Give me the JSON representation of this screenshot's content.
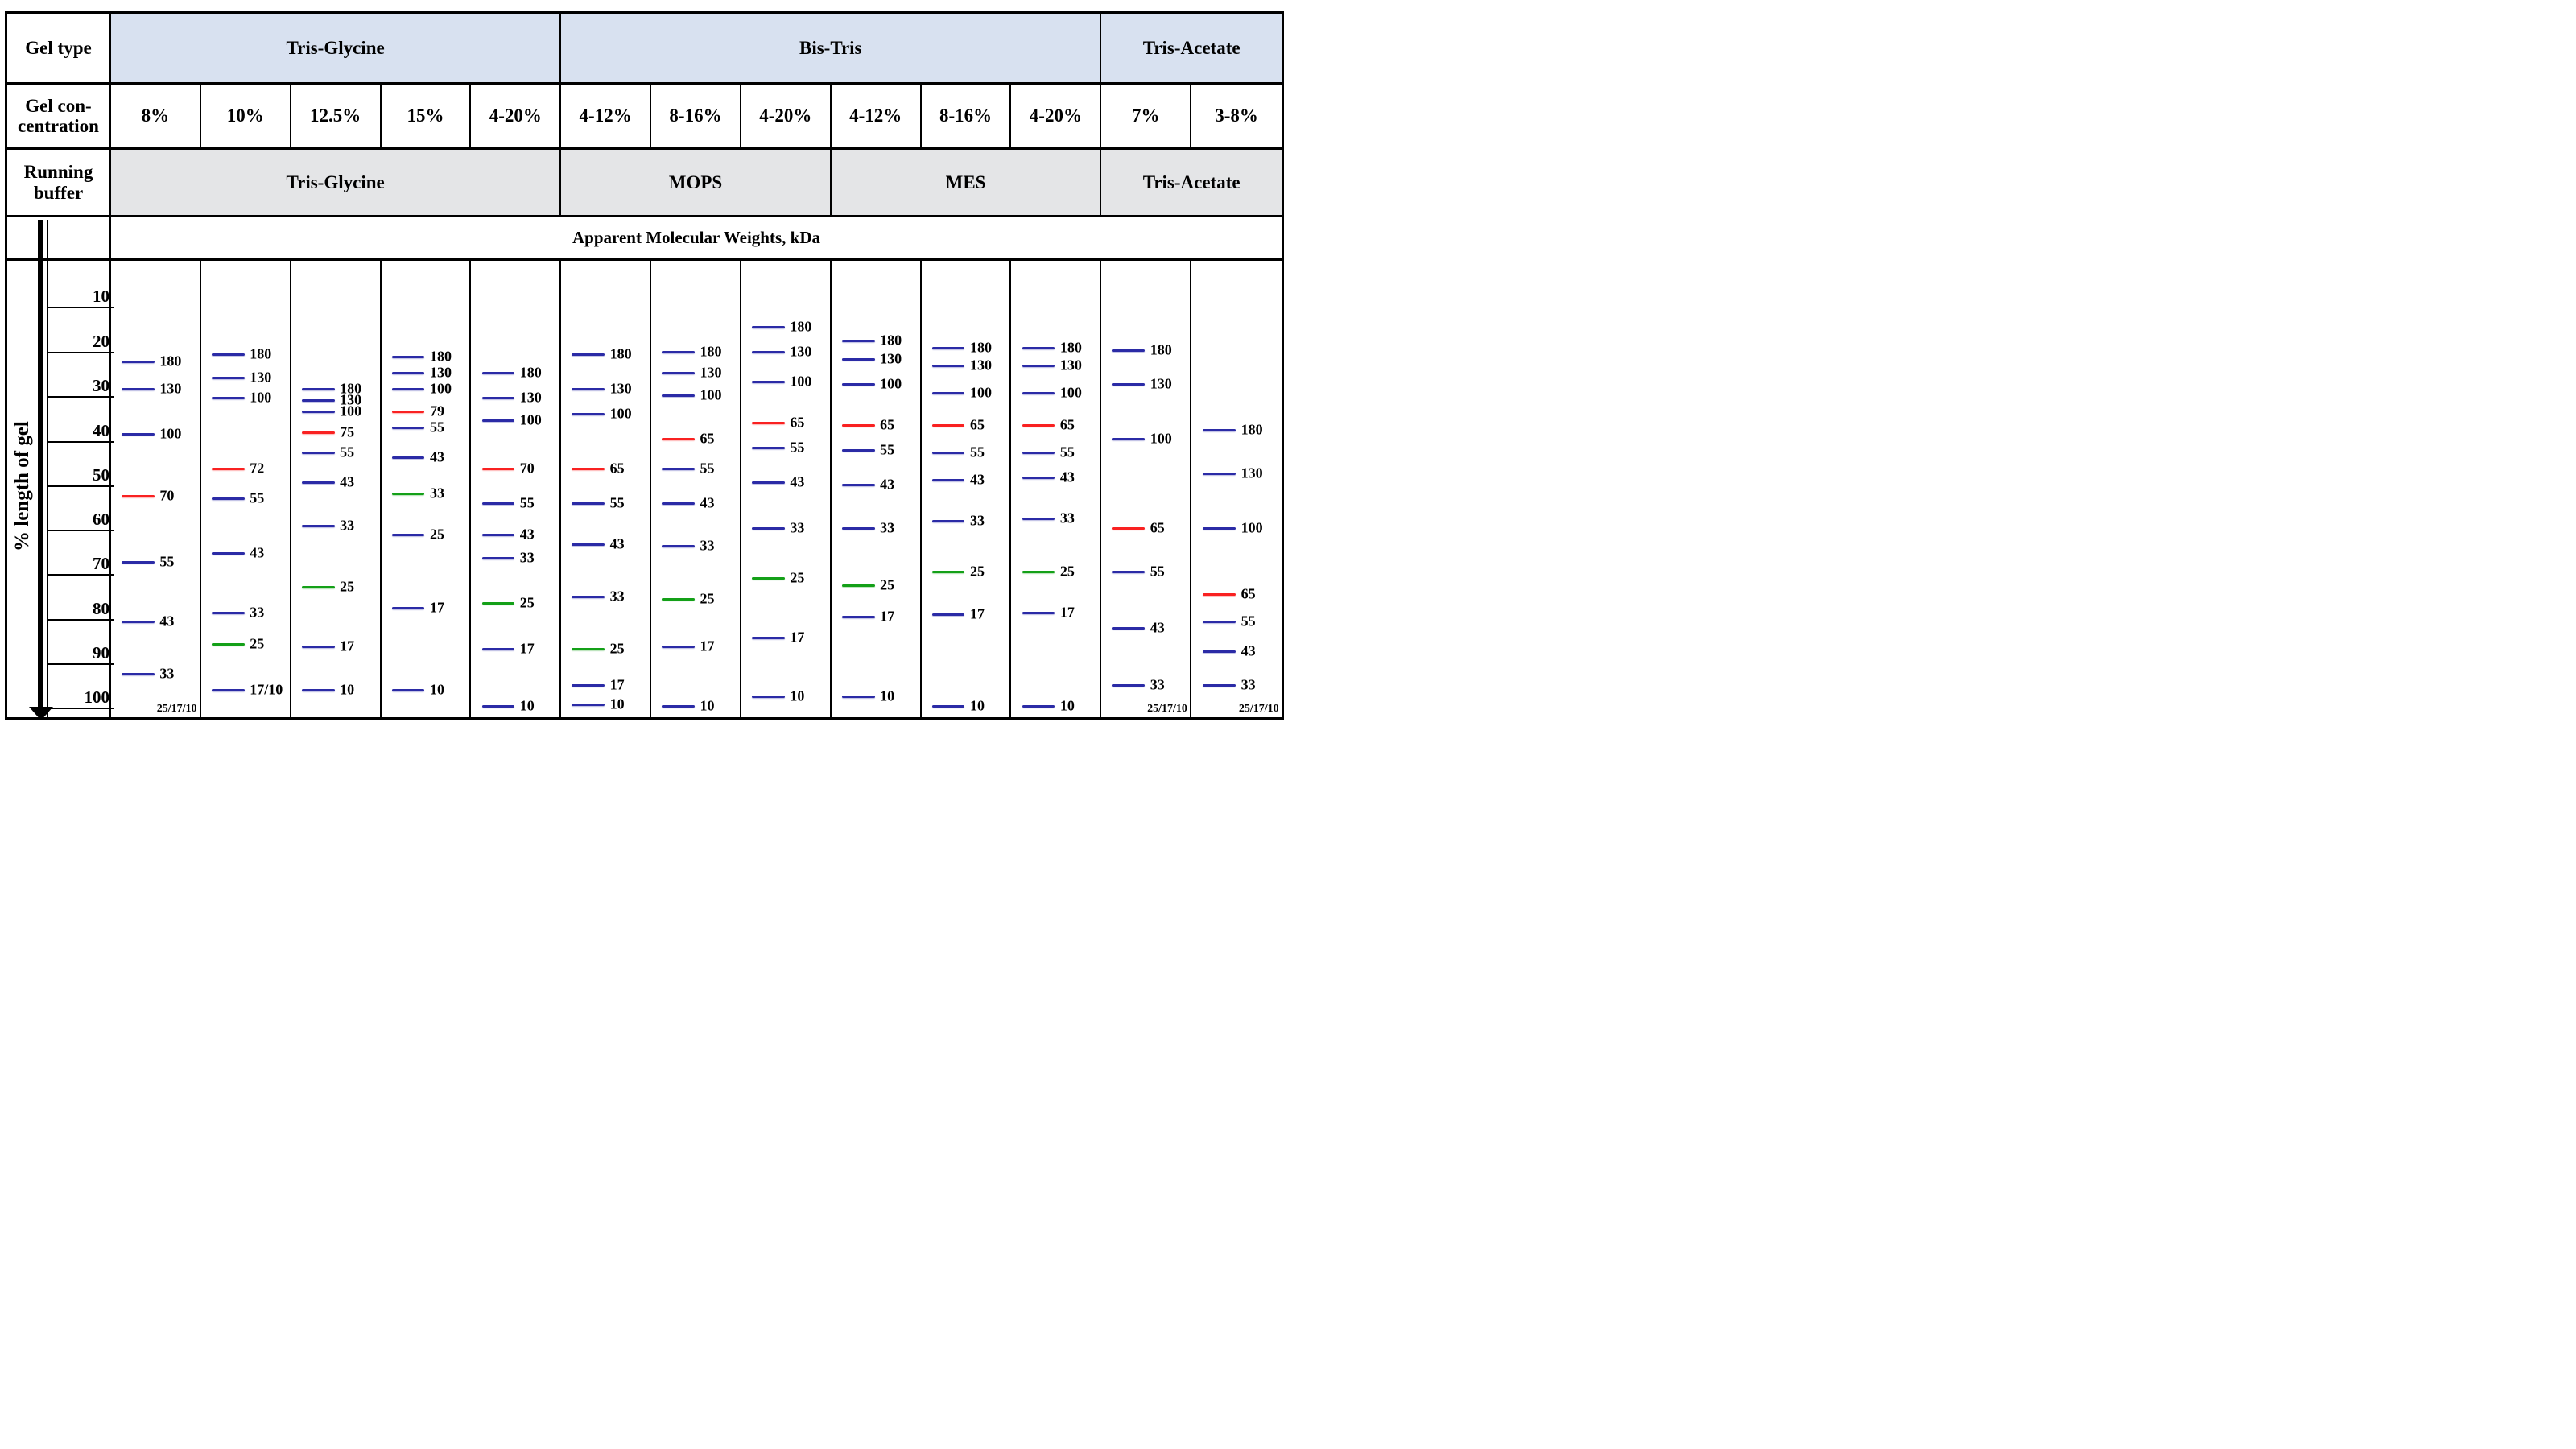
{
  "left_header": {
    "gel_type": "Gel type",
    "gel_concentration": "Gel con-\ncentration",
    "running_buffer": "Running\nbuffer",
    "axis_label": "% length of gel"
  },
  "axis_ticks": [
    "10",
    "20",
    "30",
    "40",
    "50",
    "60",
    "70",
    "80",
    "90",
    "100"
  ],
  "axis_tick_percents": [
    9.6,
    19.4,
    29.1,
    38.9,
    48.6,
    58.4,
    68.1,
    77.9,
    87.7,
    97.4
  ],
  "colors": {
    "band_blue": "#2b2ba6",
    "band_red": "#f92121",
    "band_green": "#14a018",
    "fill_blue": "#d8e1f0",
    "fill_grey": "#e4e5e7",
    "border": "#000000"
  },
  "chart_data": {
    "type": "table",
    "title": "Apparent Molecular Weights, kDa",
    "ylabel": "% length of gel",
    "y_axis_range": [
      10,
      100
    ],
    "gel_type_groups": [
      {
        "label": "Tris-Glycine",
        "span": 5
      },
      {
        "label": "Bis-Tris",
        "span": 6
      },
      {
        "label": "Tris-Acetate",
        "span": 2
      }
    ],
    "running_buffer_groups": [
      {
        "label": "Tris-Glycine",
        "span": 5
      },
      {
        "label": "MOPS",
        "span": 3
      },
      {
        "label": "MES",
        "span": 3
      },
      {
        "label": "Tris-Acetate",
        "span": 2
      }
    ],
    "concentrations": [
      "8%",
      "10%",
      "12.5%",
      "15%",
      "4-20%",
      "4-12%",
      "8-16%",
      "4-20%",
      "4-12%",
      "8-16%",
      "4-20%",
      "7%",
      "3-8%"
    ],
    "lanes": [
      {
        "concentration": "8%",
        "gel_type": "Tris-Glycine",
        "running_buffer": "Tris-Glycine",
        "footnote": "25/17/10",
        "bands": [
          {
            "kda": "180",
            "percent_length": 22,
            "color": "blue"
          },
          {
            "kda": "130",
            "percent_length": 28,
            "color": "blue"
          },
          {
            "kda": "100",
            "percent_length": 38,
            "color": "blue"
          },
          {
            "kda": "70",
            "percent_length": 51.5,
            "color": "red"
          },
          {
            "kda": "55",
            "percent_length": 66,
            "color": "blue"
          },
          {
            "kda": "43",
            "percent_length": 79,
            "color": "blue"
          },
          {
            "kda": "33",
            "percent_length": 90.5,
            "color": "blue"
          }
        ]
      },
      {
        "concentration": "10%",
        "gel_type": "Tris-Glycine",
        "running_buffer": "Tris-Glycine",
        "footnote": null,
        "bands": [
          {
            "kda": "180",
            "percent_length": 20.5,
            "color": "blue"
          },
          {
            "kda": "130",
            "percent_length": 25.5,
            "color": "blue"
          },
          {
            "kda": "100",
            "percent_length": 30,
            "color": "blue"
          },
          {
            "kda": "72",
            "percent_length": 45.5,
            "color": "red"
          },
          {
            "kda": "55",
            "percent_length": 52,
            "color": "blue"
          },
          {
            "kda": "43",
            "percent_length": 64,
            "color": "blue"
          },
          {
            "kda": "33",
            "percent_length": 77,
            "color": "blue"
          },
          {
            "kda": "25",
            "percent_length": 84,
            "color": "green"
          },
          {
            "kda": "17/10",
            "percent_length": 94,
            "color": "blue"
          }
        ]
      },
      {
        "concentration": "12.5%",
        "gel_type": "Tris-Glycine",
        "running_buffer": "Tris-Glycine",
        "footnote": null,
        "bands": [
          {
            "kda": "180",
            "percent_length": 28,
            "color": "blue"
          },
          {
            "kda": "130",
            "percent_length": 30.5,
            "color": "blue"
          },
          {
            "kda": "100",
            "percent_length": 33,
            "color": "blue"
          },
          {
            "kda": "75",
            "percent_length": 37.5,
            "color": "red"
          },
          {
            "kda": "55",
            "percent_length": 42,
            "color": "blue"
          },
          {
            "kda": "43",
            "percent_length": 48.5,
            "color": "blue"
          },
          {
            "kda": "33",
            "percent_length": 58,
            "color": "blue"
          },
          {
            "kda": "25",
            "percent_length": 71.5,
            "color": "green"
          },
          {
            "kda": "17",
            "percent_length": 84.5,
            "color": "blue"
          },
          {
            "kda": "10",
            "percent_length": 94,
            "color": "blue"
          }
        ]
      },
      {
        "concentration": "15%",
        "gel_type": "Tris-Glycine",
        "running_buffer": "Tris-Glycine",
        "footnote": null,
        "bands": [
          {
            "kda": "180",
            "percent_length": 21,
            "color": "blue"
          },
          {
            "kda": "130",
            "percent_length": 24.5,
            "color": "blue"
          },
          {
            "kda": "100",
            "percent_length": 28,
            "color": "blue"
          },
          {
            "kda": "79",
            "percent_length": 33,
            "color": "red"
          },
          {
            "kda": "55",
            "percent_length": 36.5,
            "color": "blue"
          },
          {
            "kda": "43",
            "percent_length": 43,
            "color": "blue"
          },
          {
            "kda": "33",
            "percent_length": 51,
            "color": "green"
          },
          {
            "kda": "25",
            "percent_length": 60,
            "color": "blue"
          },
          {
            "kda": "17",
            "percent_length": 76,
            "color": "blue"
          },
          {
            "kda": "10",
            "percent_length": 94,
            "color": "blue"
          }
        ]
      },
      {
        "concentration": "4-20%",
        "gel_type": "Tris-Glycine",
        "running_buffer": "Tris-Glycine",
        "footnote": null,
        "bands": [
          {
            "kda": "180",
            "percent_length": 24.5,
            "color": "blue"
          },
          {
            "kda": "130",
            "percent_length": 30,
            "color": "blue"
          },
          {
            "kda": "100",
            "percent_length": 35,
            "color": "blue"
          },
          {
            "kda": "70",
            "percent_length": 45.5,
            "color": "red"
          },
          {
            "kda": "55",
            "percent_length": 53,
            "color": "blue"
          },
          {
            "kda": "43",
            "percent_length": 60,
            "color": "blue"
          },
          {
            "kda": "33",
            "percent_length": 65,
            "color": "blue"
          },
          {
            "kda": "25",
            "percent_length": 75,
            "color": "green"
          },
          {
            "kda": "17",
            "percent_length": 85,
            "color": "blue"
          },
          {
            "kda": "10",
            "percent_length": 97.5,
            "color": "blue"
          }
        ]
      },
      {
        "concentration": "4-12%",
        "gel_type": "Bis-Tris",
        "running_buffer": "MOPS",
        "footnote": null,
        "bands": [
          {
            "kda": "180",
            "percent_length": 20.5,
            "color": "blue"
          },
          {
            "kda": "130",
            "percent_length": 28,
            "color": "blue"
          },
          {
            "kda": "100",
            "percent_length": 33.5,
            "color": "blue"
          },
          {
            "kda": "65",
            "percent_length": 45.5,
            "color": "red"
          },
          {
            "kda": "55",
            "percent_length": 53,
            "color": "blue"
          },
          {
            "kda": "43",
            "percent_length": 62,
            "color": "blue"
          },
          {
            "kda": "33",
            "percent_length": 73.5,
            "color": "blue"
          },
          {
            "kda": "25",
            "percent_length": 85,
            "color": "green"
          },
          {
            "kda": "17",
            "percent_length": 93,
            "color": "blue"
          },
          {
            "kda": "10",
            "percent_length": 97.2,
            "color": "blue"
          }
        ]
      },
      {
        "concentration": "8-16%",
        "gel_type": "Bis-Tris",
        "running_buffer": "MOPS",
        "footnote": null,
        "bands": [
          {
            "kda": "180",
            "percent_length": 20,
            "color": "blue"
          },
          {
            "kda": "130",
            "percent_length": 24.5,
            "color": "blue"
          },
          {
            "kda": "100",
            "percent_length": 29.5,
            "color": "blue"
          },
          {
            "kda": "65",
            "percent_length": 39,
            "color": "red"
          },
          {
            "kda": "55",
            "percent_length": 45.5,
            "color": "blue"
          },
          {
            "kda": "43",
            "percent_length": 53,
            "color": "blue"
          },
          {
            "kda": "33",
            "percent_length": 62.5,
            "color": "blue"
          },
          {
            "kda": "25",
            "percent_length": 74,
            "color": "green"
          },
          {
            "kda": "17",
            "percent_length": 84.5,
            "color": "blue"
          },
          {
            "kda": "10",
            "percent_length": 97.5,
            "color": "blue"
          }
        ]
      },
      {
        "concentration": "4-20%",
        "gel_type": "Bis-Tris",
        "running_buffer": "MOPS",
        "footnote": null,
        "bands": [
          {
            "kda": "180",
            "percent_length": 14.5,
            "color": "blue"
          },
          {
            "kda": "130",
            "percent_length": 20,
            "color": "blue"
          },
          {
            "kda": "100",
            "percent_length": 26.5,
            "color": "blue"
          },
          {
            "kda": "65",
            "percent_length": 35.5,
            "color": "red"
          },
          {
            "kda": "55",
            "percent_length": 41,
            "color": "blue"
          },
          {
            "kda": "43",
            "percent_length": 48.5,
            "color": "blue"
          },
          {
            "kda": "33",
            "percent_length": 58.5,
            "color": "blue"
          },
          {
            "kda": "25",
            "percent_length": 69.5,
            "color": "green"
          },
          {
            "kda": "17",
            "percent_length": 82.5,
            "color": "blue"
          },
          {
            "kda": "10",
            "percent_length": 95.5,
            "color": "blue"
          }
        ]
      },
      {
        "concentration": "4-12%",
        "gel_type": "Bis-Tris",
        "running_buffer": "MES",
        "footnote": null,
        "bands": [
          {
            "kda": "180",
            "percent_length": 17.5,
            "color": "blue"
          },
          {
            "kda": "130",
            "percent_length": 21.5,
            "color": "blue"
          },
          {
            "kda": "100",
            "percent_length": 27,
            "color": "blue"
          },
          {
            "kda": "65",
            "percent_length": 36,
            "color": "red"
          },
          {
            "kda": "55",
            "percent_length": 41.5,
            "color": "blue"
          },
          {
            "kda": "43",
            "percent_length": 49,
            "color": "blue"
          },
          {
            "kda": "33",
            "percent_length": 58.5,
            "color": "blue"
          },
          {
            "kda": "25",
            "percent_length": 71,
            "color": "green"
          },
          {
            "kda": "17",
            "percent_length": 78,
            "color": "blue"
          },
          {
            "kda": "10",
            "percent_length": 95.5,
            "color": "blue"
          }
        ]
      },
      {
        "concentration": "8-16%",
        "gel_type": "Bis-Tris",
        "running_buffer": "MES",
        "footnote": null,
        "bands": [
          {
            "kda": "180",
            "percent_length": 19,
            "color": "blue"
          },
          {
            "kda": "130",
            "percent_length": 23,
            "color": "blue"
          },
          {
            "kda": "100",
            "percent_length": 29,
            "color": "blue"
          },
          {
            "kda": "65",
            "percent_length": 36,
            "color": "red"
          },
          {
            "kda": "55",
            "percent_length": 42,
            "color": "blue"
          },
          {
            "kda": "43",
            "percent_length": 48,
            "color": "blue"
          },
          {
            "kda": "33",
            "percent_length": 57,
            "color": "blue"
          },
          {
            "kda": "25",
            "percent_length": 68,
            "color": "green"
          },
          {
            "kda": "17",
            "percent_length": 77.5,
            "color": "blue"
          },
          {
            "kda": "10",
            "percent_length": 97.5,
            "color": "blue"
          }
        ]
      },
      {
        "concentration": "4-20%",
        "gel_type": "Bis-Tris",
        "running_buffer": "MES",
        "footnote": null,
        "bands": [
          {
            "kda": "180",
            "percent_length": 19,
            "color": "blue"
          },
          {
            "kda": "130",
            "percent_length": 23,
            "color": "blue"
          },
          {
            "kda": "100",
            "percent_length": 29,
            "color": "blue"
          },
          {
            "kda": "65",
            "percent_length": 36,
            "color": "red"
          },
          {
            "kda": "55",
            "percent_length": 42,
            "color": "blue"
          },
          {
            "kda": "43",
            "percent_length": 47.5,
            "color": "blue"
          },
          {
            "kda": "33",
            "percent_length": 56.5,
            "color": "blue"
          },
          {
            "kda": "25",
            "percent_length": 68,
            "color": "green"
          },
          {
            "kda": "17",
            "percent_length": 77,
            "color": "blue"
          },
          {
            "kda": "10",
            "percent_length": 97.5,
            "color": "blue"
          }
        ]
      },
      {
        "concentration": "7%",
        "gel_type": "Tris-Acetate",
        "running_buffer": "Tris-Acetate",
        "footnote": "25/17/10",
        "bands": [
          {
            "kda": "180",
            "percent_length": 19.5,
            "color": "blue"
          },
          {
            "kda": "130",
            "percent_length": 27,
            "color": "blue"
          },
          {
            "kda": "100",
            "percent_length": 39,
            "color": "blue"
          },
          {
            "kda": "65",
            "percent_length": 58.5,
            "color": "red"
          },
          {
            "kda": "55",
            "percent_length": 68,
            "color": "blue"
          },
          {
            "kda": "43",
            "percent_length": 80.5,
            "color": "blue"
          },
          {
            "kda": "33",
            "percent_length": 93,
            "color": "blue"
          }
        ]
      },
      {
        "concentration": "3-8%",
        "gel_type": "Tris-Acetate",
        "running_buffer": "Tris-Acetate",
        "footnote": "25/17/10",
        "bands": [
          {
            "kda": "180",
            "percent_length": 37,
            "color": "blue"
          },
          {
            "kda": "130",
            "percent_length": 46.5,
            "color": "blue"
          },
          {
            "kda": "100",
            "percent_length": 58.5,
            "color": "blue"
          },
          {
            "kda": "65",
            "percent_length": 73,
            "color": "red"
          },
          {
            "kda": "55",
            "percent_length": 79,
            "color": "blue"
          },
          {
            "kda": "43",
            "percent_length": 85.5,
            "color": "blue"
          },
          {
            "kda": "33",
            "percent_length": 93,
            "color": "blue"
          }
        ]
      }
    ]
  }
}
